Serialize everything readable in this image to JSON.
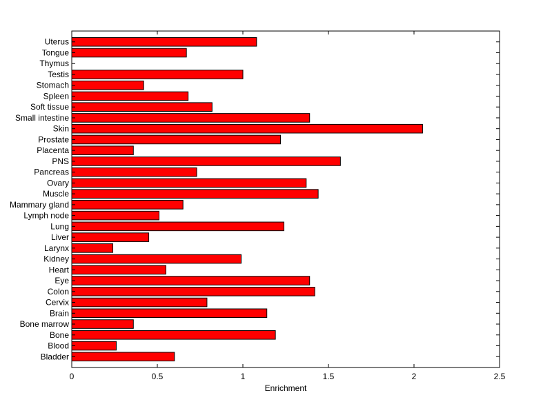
{
  "chart_data": {
    "type": "bar",
    "orientation": "horizontal",
    "title": "",
    "xlabel": "Enrichment",
    "ylabel": "",
    "xlim": [
      0,
      2.5
    ],
    "xticks": [
      0,
      0.5,
      1,
      1.5,
      2,
      2.5
    ],
    "xtick_labels": [
      "0",
      "0.5",
      "1",
      "1.5",
      "2",
      "2.5"
    ],
    "grid": false,
    "bar_color": "#ff0000",
    "bar_edge_color": "#000000",
    "categories": [
      "Bladder",
      "Blood",
      "Bone",
      "Bone marrow",
      "Brain",
      "Cervix",
      "Colon",
      "Eye",
      "Heart",
      "Kidney",
      "Larynx",
      "Liver",
      "Lung",
      "Lymph node",
      "Mammary gland",
      "Muscle",
      "Ovary",
      "Pancreas",
      "PNS",
      "Placenta",
      "Prostate",
      "Skin",
      "Small intestine",
      "Soft tissue",
      "Spleen",
      "Stomach",
      "Testis",
      "Thymus",
      "Tongue",
      "Uterus"
    ],
    "values": [
      0.6,
      0.26,
      1.19,
      0.36,
      1.14,
      0.79,
      1.42,
      1.39,
      0.55,
      0.99,
      0.24,
      0.45,
      1.24,
      0.51,
      0.65,
      1.44,
      1.37,
      0.73,
      1.57,
      0.36,
      1.22,
      2.05,
      1.39,
      0.82,
      0.68,
      0.42,
      1.0,
      0.0,
      0.67,
      1.08
    ]
  }
}
